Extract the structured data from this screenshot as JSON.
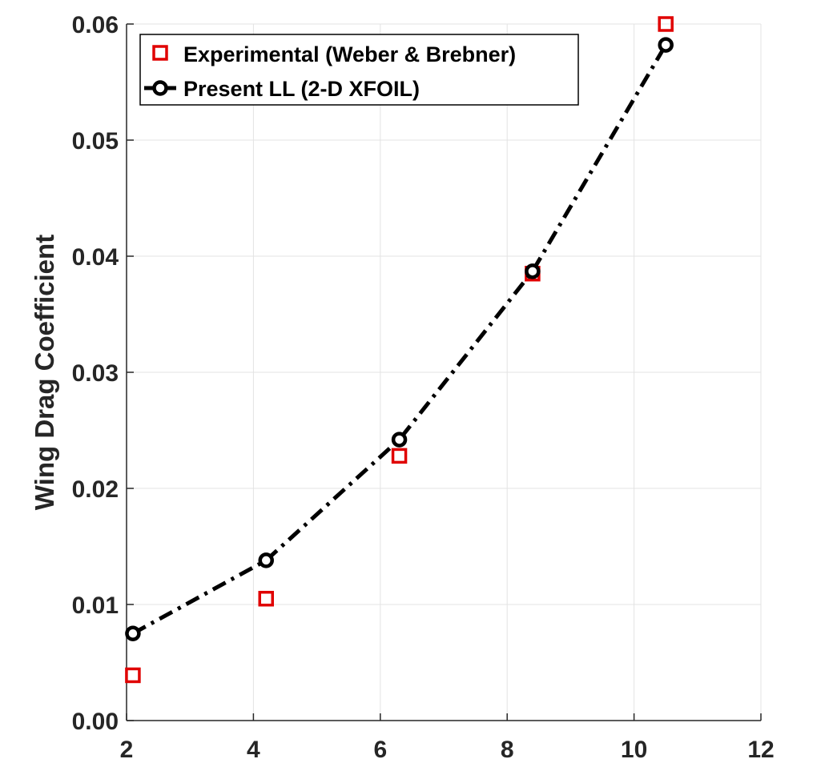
{
  "chart_data": {
    "type": "scatter",
    "xlabel": "",
    "ylabel": "Wing Drag Coefficient",
    "xlim": [
      2,
      12
    ],
    "ylim": [
      0.0,
      0.06
    ],
    "x_ticks": [
      "2",
      "4",
      "6",
      "8",
      "10",
      "12"
    ],
    "y_ticks": [
      "0.00",
      "0.01",
      "0.02",
      "0.03",
      "0.04",
      "0.05",
      "0.06"
    ],
    "grid": true,
    "legend_position": "top-left",
    "series": [
      {
        "name": "Experimental (Weber & Brebner)",
        "style": "square-markers",
        "color": "#e00000",
        "x": [
          2.1,
          4.2,
          6.3,
          8.4,
          10.5
        ],
        "y": [
          0.0039,
          0.0105,
          0.0228,
          0.0385,
          0.06
        ]
      },
      {
        "name": "Present LL (2-D XFOIL)",
        "style": "dash-dot-line-circle-markers",
        "color": "#000000",
        "x": [
          2.1,
          4.2,
          6.3,
          8.4,
          10.5
        ],
        "y": [
          0.0075,
          0.0138,
          0.0242,
          0.0387,
          0.0582
        ]
      }
    ]
  }
}
